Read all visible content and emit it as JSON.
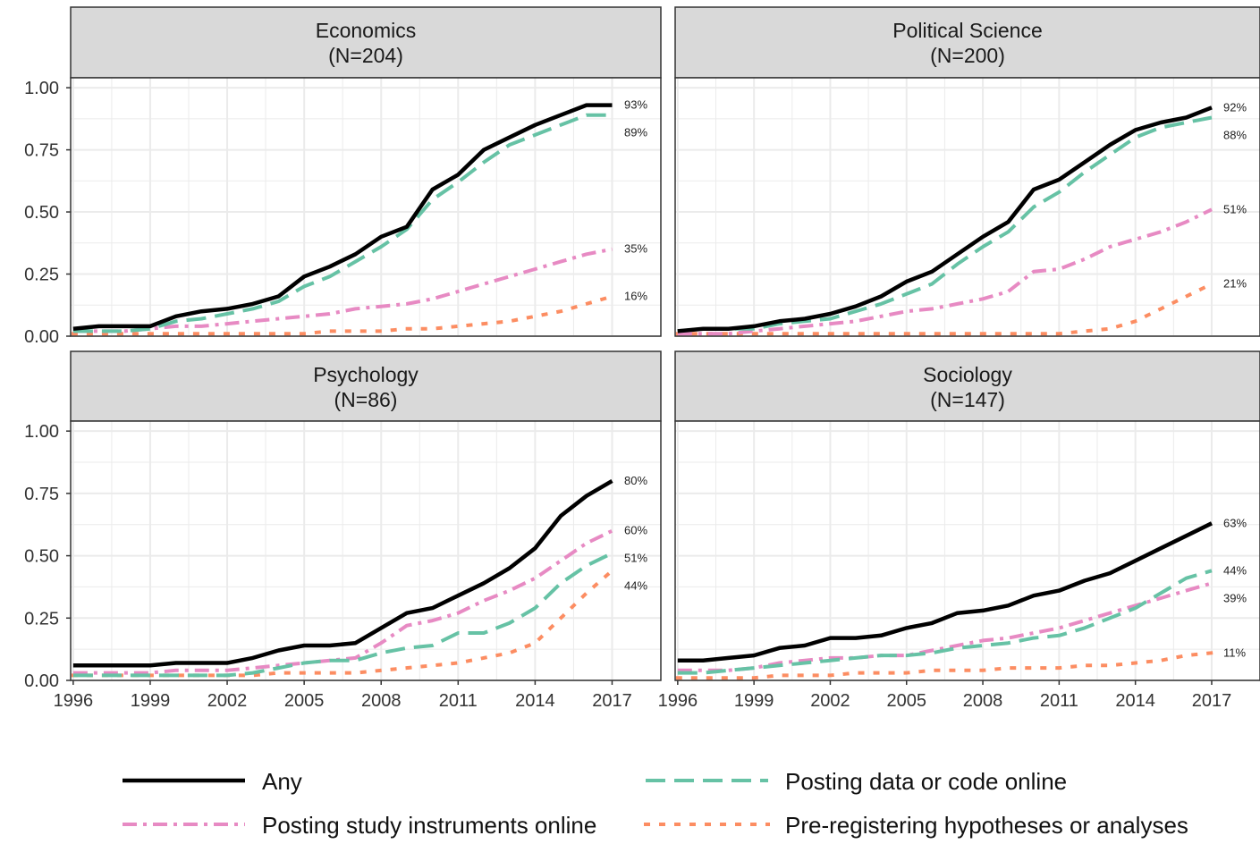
{
  "colors": {
    "any": "#000000",
    "data": "#66c2a5",
    "instruments": "#e78ac3",
    "prereg": "#fc8d62",
    "strip": "#d9d9d9",
    "grid": "#ebebeb",
    "panel_border": "#333333"
  },
  "legend": {
    "items": [
      {
        "key": "any",
        "label": "Any"
      },
      {
        "key": "data",
        "label": "Posting data or code online"
      },
      {
        "key": "instruments",
        "label": "Posting study instruments online"
      },
      {
        "key": "prereg",
        "label": "Pre-registering hypotheses or analyses"
      }
    ],
    "placement": "bottom"
  },
  "chart_data": {
    "type": "line",
    "facet_layout": "2x2",
    "x_ticks": [
      1996,
      1999,
      2002,
      2005,
      2008,
      2011,
      2014,
      2017
    ],
    "y_ticks": [
      "0.00",
      "0.25",
      "0.50",
      "0.75",
      "1.00"
    ],
    "xlim": [
      1995.9,
      2018.9
    ],
    "ylim": [
      0,
      1.04
    ],
    "grid": true,
    "x": [
      1996,
      1997,
      1998,
      1999,
      2000,
      2001,
      2002,
      2003,
      2004,
      2005,
      2006,
      2007,
      2008,
      2009,
      2010,
      2011,
      2012,
      2013,
      2014,
      2015,
      2016,
      2017
    ],
    "panels": [
      {
        "title": "Economics",
        "subtitle": "(N=204)",
        "series": [
          {
            "key": "any",
            "end_label": "93%",
            "values": [
              0.03,
              0.04,
              0.04,
              0.04,
              0.08,
              0.1,
              0.11,
              0.13,
              0.16,
              0.24,
              0.28,
              0.33,
              0.4,
              0.44,
              0.59,
              0.65,
              0.75,
              0.8,
              0.85,
              0.89,
              0.93,
              0.93
            ]
          },
          {
            "key": "data",
            "end_label": "89%",
            "values": [
              0.02,
              0.02,
              0.02,
              0.03,
              0.06,
              0.07,
              0.09,
              0.11,
              0.14,
              0.2,
              0.24,
              0.3,
              0.36,
              0.43,
              0.55,
              0.62,
              0.7,
              0.77,
              0.81,
              0.85,
              0.89,
              0.89
            ]
          },
          {
            "key": "instruments",
            "end_label": "35%",
            "values": [
              0.02,
              0.02,
              0.02,
              0.03,
              0.04,
              0.04,
              0.05,
              0.06,
              0.07,
              0.08,
              0.09,
              0.11,
              0.12,
              0.13,
              0.15,
              0.18,
              0.21,
              0.24,
              0.27,
              0.3,
              0.33,
              0.35
            ]
          },
          {
            "key": "prereg",
            "end_label": "16%",
            "values": [
              0.01,
              0.01,
              0.01,
              0.01,
              0.01,
              0.01,
              0.01,
              0.01,
              0.01,
              0.01,
              0.02,
              0.02,
              0.02,
              0.03,
              0.03,
              0.04,
              0.05,
              0.06,
              0.08,
              0.1,
              0.13,
              0.16
            ]
          }
        ]
      },
      {
        "title": "Political Science",
        "subtitle": "(N=200)",
        "series": [
          {
            "key": "any",
            "end_label": "92%",
            "values": [
              0.02,
              0.03,
              0.03,
              0.04,
              0.06,
              0.07,
              0.09,
              0.12,
              0.16,
              0.22,
              0.26,
              0.33,
              0.4,
              0.46,
              0.59,
              0.63,
              0.7,
              0.77,
              0.83,
              0.86,
              0.88,
              0.92
            ]
          },
          {
            "key": "data",
            "end_label": "88%",
            "values": [
              0.02,
              0.03,
              0.03,
              0.03,
              0.05,
              0.06,
              0.07,
              0.1,
              0.13,
              0.17,
              0.21,
              0.29,
              0.36,
              0.42,
              0.52,
              0.58,
              0.66,
              0.73,
              0.8,
              0.84,
              0.86,
              0.88
            ]
          },
          {
            "key": "instruments",
            "end_label": "51%",
            "values": [
              0.01,
              0.01,
              0.01,
              0.02,
              0.03,
              0.04,
              0.05,
              0.06,
              0.08,
              0.1,
              0.11,
              0.13,
              0.15,
              0.18,
              0.26,
              0.27,
              0.31,
              0.36,
              0.39,
              0.42,
              0.46,
              0.51
            ]
          },
          {
            "key": "prereg",
            "end_label": "21%",
            "values": [
              0.01,
              0.01,
              0.01,
              0.01,
              0.01,
              0.01,
              0.01,
              0.01,
              0.01,
              0.01,
              0.01,
              0.01,
              0.01,
              0.01,
              0.01,
              0.01,
              0.02,
              0.03,
              0.06,
              0.11,
              0.16,
              0.21
            ]
          }
        ]
      },
      {
        "title": "Psychology",
        "subtitle": "(N=86)",
        "series": [
          {
            "key": "any",
            "end_label": "80%",
            "values": [
              0.06,
              0.06,
              0.06,
              0.06,
              0.07,
              0.07,
              0.07,
              0.09,
              0.12,
              0.14,
              0.14,
              0.15,
              0.21,
              0.27,
              0.29,
              0.34,
              0.39,
              0.45,
              0.53,
              0.66,
              0.74,
              0.8
            ]
          },
          {
            "key": "data",
            "end_label": "51%",
            "values": [
              0.02,
              0.02,
              0.02,
              0.02,
              0.02,
              0.02,
              0.02,
              0.03,
              0.05,
              0.07,
              0.08,
              0.08,
              0.11,
              0.13,
              0.14,
              0.19,
              0.19,
              0.23,
              0.29,
              0.39,
              0.46,
              0.51
            ]
          },
          {
            "key": "instruments",
            "end_label": "60%",
            "values": [
              0.03,
              0.03,
              0.03,
              0.03,
              0.04,
              0.04,
              0.04,
              0.05,
              0.06,
              0.07,
              0.08,
              0.09,
              0.15,
              0.22,
              0.24,
              0.27,
              0.32,
              0.36,
              0.41,
              0.48,
              0.55,
              0.6
            ]
          },
          {
            "key": "prereg",
            "end_label": "44%",
            "values": [
              0.02,
              0.02,
              0.02,
              0.02,
              0.02,
              0.02,
              0.02,
              0.02,
              0.03,
              0.03,
              0.03,
              0.03,
              0.04,
              0.05,
              0.06,
              0.07,
              0.09,
              0.11,
              0.15,
              0.25,
              0.35,
              0.44
            ]
          }
        ]
      },
      {
        "title": "Sociology",
        "subtitle": "(N=147)",
        "series": [
          {
            "key": "any",
            "end_label": "63%",
            "values": [
              0.08,
              0.08,
              0.09,
              0.1,
              0.13,
              0.14,
              0.17,
              0.17,
              0.18,
              0.21,
              0.23,
              0.27,
              0.28,
              0.3,
              0.34,
              0.36,
              0.4,
              0.43,
              0.48,
              0.53,
              0.58,
              0.63
            ]
          },
          {
            "key": "data",
            "end_label": "44%",
            "values": [
              0.03,
              0.03,
              0.04,
              0.05,
              0.06,
              0.07,
              0.08,
              0.09,
              0.1,
              0.1,
              0.11,
              0.13,
              0.14,
              0.15,
              0.17,
              0.18,
              0.21,
              0.25,
              0.29,
              0.35,
              0.41,
              0.44
            ]
          },
          {
            "key": "instruments",
            "end_label": "39%",
            "values": [
              0.04,
              0.04,
              0.04,
              0.05,
              0.07,
              0.08,
              0.09,
              0.09,
              0.1,
              0.1,
              0.12,
              0.14,
              0.16,
              0.17,
              0.19,
              0.21,
              0.24,
              0.27,
              0.3,
              0.33,
              0.36,
              0.39
            ]
          },
          {
            "key": "prereg",
            "end_label": "11%",
            "values": [
              0.01,
              0.01,
              0.01,
              0.01,
              0.02,
              0.02,
              0.02,
              0.03,
              0.03,
              0.03,
              0.04,
              0.04,
              0.04,
              0.05,
              0.05,
              0.05,
              0.06,
              0.06,
              0.07,
              0.08,
              0.1,
              0.11
            ]
          }
        ]
      }
    ]
  }
}
